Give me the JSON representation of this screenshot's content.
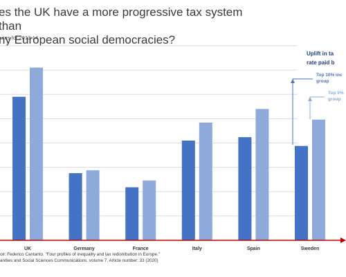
{
  "title": "es the UK have a more progressive tax system than\nny European social democracies?",
  "subtitle": "ures for 2013-14",
  "legend": {
    "title_line1": "Uplift in ta",
    "title_line2": "rate paid b",
    "dark_line1": "Top 10% inc",
    "dark_line2": "group",
    "light_line1": "Top 5%",
    "light_line2": "group"
  },
  "source_line1": "ce: Federico Cantanto. \"Four profiles of inequality and tax redistribution in Europe.\"",
  "source_line2": "anities and Social Sciences Communications, volume 7, Article number: 33 (2020)",
  "chart_data": {
    "type": "bar",
    "categories": [
      "UK",
      "Germany",
      "France",
      "Italy",
      "Spain",
      "Sweden"
    ],
    "series": [
      {
        "name": "Top 10% inc group",
        "color": "#4472c4",
        "values": [
          29.5,
          13.8,
          10.9,
          20.5,
          21.2,
          19.4
        ]
      },
      {
        "name": "Top 5% group",
        "color": "#8eaadb",
        "values": [
          35.5,
          14.4,
          12.3,
          24.2,
          27.0,
          24.8
        ]
      }
    ],
    "ylim": [
      0,
      40
    ],
    "grid": true,
    "axis_color": "#c00000",
    "grid_color": "#dcdcdc"
  }
}
